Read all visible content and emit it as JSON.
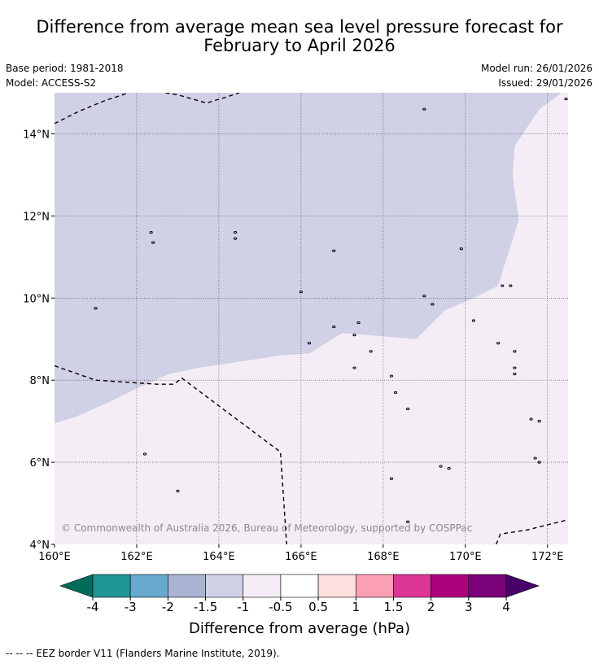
{
  "title_line1": "Difference from average mean sea level pressure forecast for",
  "title_line2": "February to April 2026",
  "base_period": "Base period: 1981-2018",
  "model": "Model: ACCESS-S2",
  "model_run": "Model run: 26/01/2026",
  "issued": "Issued: 29/01/2026",
  "copyright": "© Commonwealth of Australia 2026, Bureau of Meteorology, supported by COSPPac",
  "map": {
    "lon_range": [
      160,
      172.5
    ],
    "lat_range": [
      4,
      15
    ],
    "lon_ticks": [
      {
        "value": 160,
        "label": "160°E"
      },
      {
        "value": 162,
        "label": "162°E"
      },
      {
        "value": 164,
        "label": "164°E"
      },
      {
        "value": 166,
        "label": "166°E"
      },
      {
        "value": 168,
        "label": "168°E"
      },
      {
        "value": 170,
        "label": "170°E"
      },
      {
        "value": 172,
        "label": "172°E"
      }
    ],
    "lat_ticks": [
      {
        "value": 4,
        "label": "4°N"
      },
      {
        "value": 6,
        "label": "6°N"
      },
      {
        "value": 8,
        "label": "8°N"
      },
      {
        "value": 10,
        "label": "10°N"
      },
      {
        "value": 12,
        "label": "12°N"
      },
      {
        "value": 14,
        "label": "14°N"
      }
    ],
    "region_minus1_to_minus1_5": {
      "color": "#d0d1e6",
      "boundary_lonlat": [
        [
          160,
          15
        ],
        [
          172.35,
          15
        ],
        [
          171.8,
          14.6
        ],
        [
          171.2,
          13.7
        ],
        [
          171.15,
          13.0
        ],
        [
          171.3,
          11.9
        ],
        [
          170.95,
          10.8
        ],
        [
          170.8,
          10.3
        ],
        [
          170.2,
          10.0
        ],
        [
          169.5,
          9.7
        ],
        [
          168.8,
          9.0
        ],
        [
          168.2,
          9.05
        ],
        [
          167.0,
          9.15
        ],
        [
          166.2,
          8.65
        ],
        [
          165.5,
          8.6
        ],
        [
          163.5,
          8.3
        ],
        [
          162.8,
          8.15
        ],
        [
          162.0,
          7.8
        ],
        [
          161.3,
          7.45
        ],
        [
          160.5,
          7.1
        ],
        [
          160,
          6.95
        ]
      ]
    },
    "region_minus0_5_to_minus1": {
      "color": "#f4edf6"
    },
    "eez_lines": [
      [
        [
          160,
          14.25
        ],
        [
          160.6,
          14.55
        ],
        [
          161.2,
          14.8
        ],
        [
          161.6,
          14.93
        ],
        [
          161.8,
          15.0
        ]
      ],
      [
        [
          162.7,
          15.0
        ],
        [
          163.0,
          14.95
        ],
        [
          163.7,
          14.75
        ],
        [
          164.2,
          14.9
        ],
        [
          164.5,
          15.0
        ]
      ],
      [
        [
          160,
          8.35
        ],
        [
          161,
          8.0
        ],
        [
          162.5,
          7.9
        ],
        [
          162.9,
          7.9
        ],
        [
          163.1,
          8.05
        ],
        [
          165.5,
          6.25
        ],
        [
          165.65,
          4.0
        ]
      ],
      [
        [
          170.75,
          4.0
        ],
        [
          170.85,
          4.25
        ],
        [
          171.5,
          4.35
        ],
        [
          172.5,
          4.6
        ]
      ]
    ],
    "islands_lonlat": [
      [
        169.0,
        14.6
      ],
      [
        162.35,
        11.6
      ],
      [
        162.4,
        11.35
      ],
      [
        164.4,
        11.6
      ],
      [
        164.4,
        11.45
      ],
      [
        166.8,
        11.15
      ],
      [
        169.9,
        11.2
      ],
      [
        166.0,
        10.15
      ],
      [
        161.0,
        9.75
      ],
      [
        169.0,
        10.05
      ],
      [
        169.2,
        9.85
      ],
      [
        170.9,
        10.3
      ],
      [
        166.8,
        9.3
      ],
      [
        167.4,
        9.4
      ],
      [
        167.3,
        9.1
      ],
      [
        166.2,
        8.9
      ],
      [
        167.7,
        8.7
      ],
      [
        167.3,
        8.3
      ],
      [
        168.2,
        8.1
      ],
      [
        168.3,
        7.7
      ],
      [
        168.6,
        7.3
      ],
      [
        169.4,
        5.9
      ],
      [
        169.6,
        5.85
      ],
      [
        170.8,
        8.9
      ],
      [
        171.2,
        8.7
      ],
      [
        171.2,
        8.3
      ],
      [
        171.2,
        8.15
      ],
      [
        171.6,
        7.05
      ],
      [
        171.8,
        7.0
      ],
      [
        171.7,
        6.1
      ],
      [
        171.8,
        6.0
      ],
      [
        163.0,
        5.3
      ],
      [
        162.2,
        6.2
      ],
      [
        168.2,
        5.6
      ],
      [
        168.6,
        4.55
      ],
      [
        170.2,
        9.45
      ],
      [
        171.1,
        10.3
      ],
      [
        172.45,
        14.85
      ]
    ]
  },
  "colorbar": {
    "label": "Difference from average (hPa)",
    "colors": [
      "#006d5b",
      "#1f9594",
      "#67a9cf",
      "#aab4d2",
      "#d0d1e6",
      "#f4edf6",
      "#ffffff",
      "#fde0dd",
      "#fa9fb5",
      "#dd3497",
      "#ae017e",
      "#7a0177",
      "#49006a"
    ],
    "tick_labels": [
      "-4",
      "-3",
      "-2",
      "-1.5",
      "-1",
      "-0.5",
      "0.5",
      "1",
      "1.5",
      "2",
      "3",
      "4"
    ]
  },
  "footer": "--  --  -- EEZ border V11 (Flanders Marine Institute, 2019)."
}
